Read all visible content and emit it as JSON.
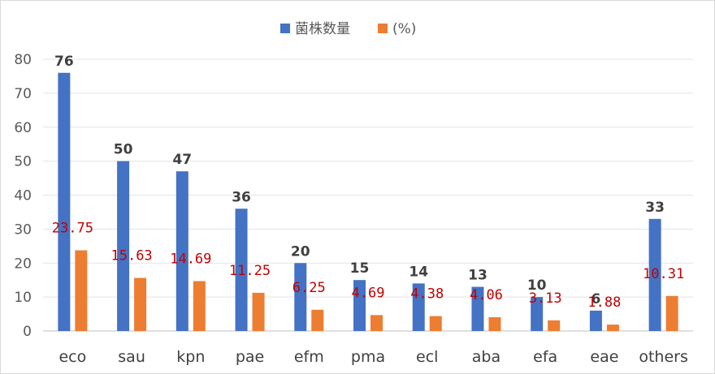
{
  "chart_data": {
    "type": "bar",
    "title": "",
    "xlabel": "",
    "ylabel": "",
    "ylim": [
      0,
      80
    ],
    "yticks": [
      0,
      10,
      20,
      30,
      40,
      50,
      60,
      70,
      80
    ],
    "grid": true,
    "legend_position": "top",
    "categories": [
      "eco",
      "sau",
      "kpn",
      "pae",
      "efm",
      "pma",
      "ecl",
      "aba",
      "efa",
      "eae",
      "others"
    ],
    "series": [
      {
        "name": "菌株数量",
        "color": "#4472c4",
        "values": [
          76,
          50,
          47,
          36,
          20,
          15,
          14,
          13,
          10,
          6,
          33
        ],
        "labels": [
          "76",
          "50",
          "47",
          "36",
          "20",
          "15",
          "14",
          "13",
          "10",
          "6",
          "33"
        ]
      },
      {
        "name": "(%)",
        "color": "#ed7d31",
        "values": [
          23.75,
          15.63,
          14.69,
          11.25,
          6.25,
          4.69,
          4.38,
          4.06,
          3.13,
          1.88,
          10.31
        ],
        "labels": [
          "23.75",
          "15.63",
          "14.69",
          "11.25",
          "6.25",
          "4.69",
          "4.38",
          "4.06",
          "3.13",
          "1.88",
          "10.31"
        ]
      }
    ]
  }
}
